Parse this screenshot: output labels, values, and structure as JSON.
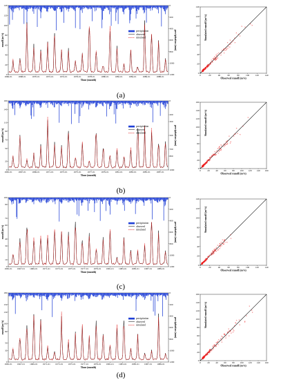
{
  "panels": [
    {
      "letter": "(a)",
      "ts": {
        "xticks": [
          "1966-01",
          "1968-01",
          "1970-01",
          "1972-01",
          "1974-01",
          "1976-01",
          "1978-01",
          "1980-01",
          "1982-01",
          "1984-01",
          "1986-01",
          "1988-01"
        ],
        "ymax": 140,
        "seed": 11,
        "xticks_count": 12
      }
    },
    {
      "letter": "(b)",
      "ts": {
        "xticks": [
          "1965-01",
          "1967-01",
          "1969-01",
          "1971-01",
          "1973-01",
          "1975-01",
          "1977-01",
          "1979-01",
          "1981-01",
          "1983-01",
          "1985-01",
          "1987-01"
        ],
        "ymax": 160,
        "seed": 23
      }
    },
    {
      "letter": "(c)",
      "ts": {
        "xticks": [
          "1965-01",
          "1967-01",
          "1969-01",
          "1971-01",
          "1973-01",
          "1975-01",
          "1977-01",
          "1979-01",
          "1981-01",
          "1983-01",
          "1985-01",
          "1987-01",
          "1989-01"
        ],
        "ymax": 100,
        "seed": 37
      }
    },
    {
      "letter": "(d)",
      "ts": {
        "xticks": [
          "1965-01",
          "1967-01",
          "1969-01",
          "1971-01",
          "1973-01",
          "1975-01",
          "1977-01",
          "1979-01",
          "1981-01",
          "1983-01",
          "1985-01",
          "1987-01",
          "1989-01"
        ],
        "ymax": 180,
        "seed": 51
      }
    }
  ],
  "labels": {
    "time": "Time (month)",
    "runoff": "runoff (m³/s)",
    "precip": "precipitation (mm)",
    "obs_runoff": "Observed runoff (m³/s)",
    "sim_runoff": "Simulated runoff (m³/s)"
  },
  "legend": [
    "precipitation",
    "observed",
    "simulated"
  ],
  "colors": {
    "precip": "#1f3fd6",
    "observed": "#000000",
    "simulated": "#e01010",
    "scatter": "#ee1c1c"
  },
  "chart_data": [
    {
      "type": "line",
      "panel": "a",
      "series": [
        {
          "name": "precipitation"
        },
        {
          "name": "observed"
        },
        {
          "name": "simulated"
        }
      ],
      "ylim": [
        0,
        140
      ],
      "y2lim": [
        0,
        1200
      ],
      "x_range": [
        "1966-01",
        "1988-12"
      ],
      "legend_position": "right"
    },
    {
      "type": "scatter",
      "panel": "a",
      "xlim": [
        0,
        140
      ],
      "ylim": [
        0,
        140
      ],
      "ticks": [
        0,
        20,
        40,
        60,
        80,
        100,
        120,
        140
      ]
    },
    {
      "type": "line",
      "panel": "b",
      "series": [
        {
          "name": "precipitation"
        },
        {
          "name": "observed"
        },
        {
          "name": "simulated"
        }
      ],
      "ylim": [
        0,
        160
      ],
      "y2lim": [
        0,
        1000
      ],
      "x_range": [
        "1965-01",
        "1988-12"
      ],
      "legend_position": "right"
    },
    {
      "type": "scatter",
      "panel": "b",
      "xlim": [
        0,
        160
      ],
      "ylim": [
        0,
        160
      ],
      "ticks": [
        0,
        20,
        40,
        60,
        80,
        100,
        120,
        140,
        160
      ]
    },
    {
      "type": "line",
      "panel": "c",
      "series": [
        {
          "name": "precipitation"
        },
        {
          "name": "observed"
        },
        {
          "name": "simulated"
        }
      ],
      "ylim": [
        0,
        100
      ],
      "y2lim": [
        0,
        1200
      ],
      "x_range": [
        "1965-01",
        "1989-12"
      ],
      "legend_position": "right"
    },
    {
      "type": "scatter",
      "panel": "c",
      "xlim": [
        0,
        140
      ],
      "ylim": [
        0,
        140
      ],
      "ticks": [
        0,
        20,
        40,
        60,
        80,
        100,
        120,
        140
      ]
    },
    {
      "type": "line",
      "panel": "d",
      "series": [
        {
          "name": "precipitation"
        },
        {
          "name": "observed"
        },
        {
          "name": "simulated"
        }
      ],
      "ylim": [
        0,
        180
      ],
      "y2lim": [
        0,
        1200
      ],
      "x_range": [
        "1965-01",
        "1989-12"
      ],
      "legend_position": "right"
    },
    {
      "type": "scatter",
      "panel": "d",
      "xlim": [
        0,
        160
      ],
      "ylim": [
        0,
        160
      ],
      "ticks": [
        0,
        20,
        40,
        60,
        80,
        100,
        120,
        140,
        160
      ]
    }
  ]
}
